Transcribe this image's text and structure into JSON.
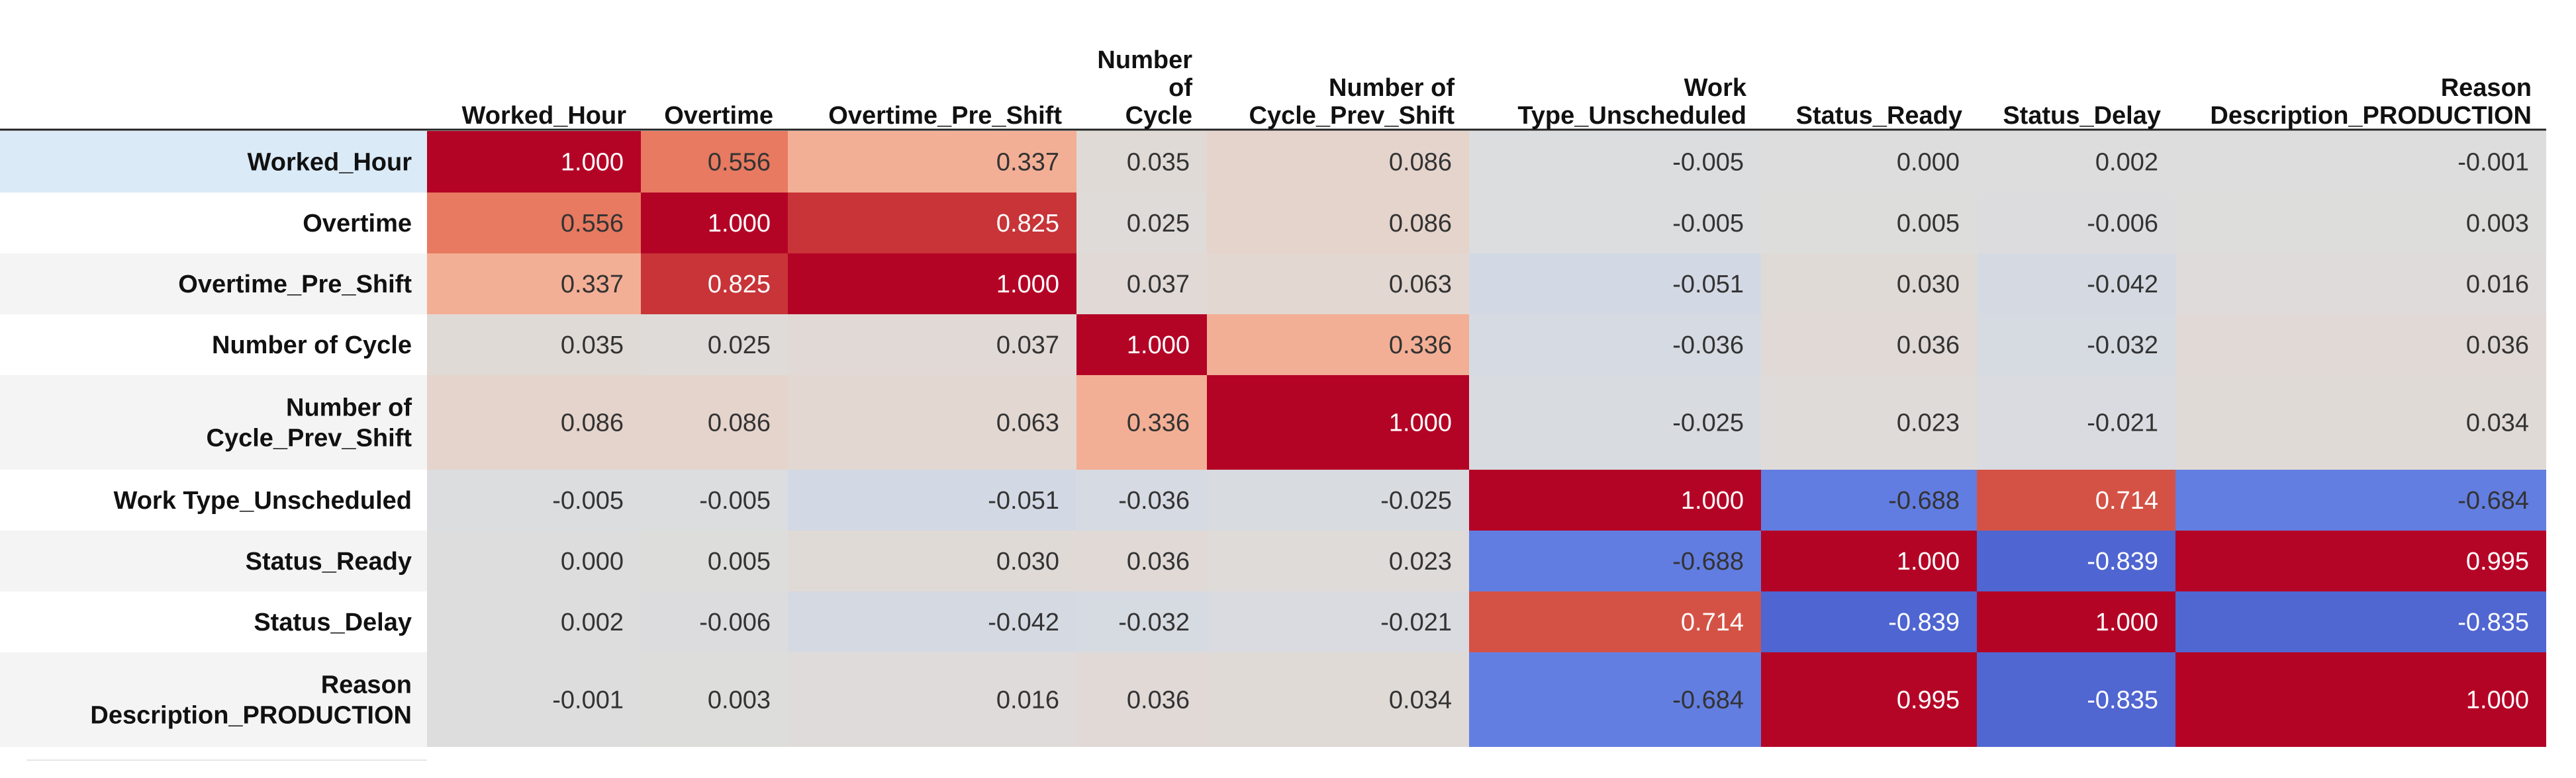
{
  "chart_data": {
    "type": "heatmap",
    "title": "",
    "colormap": "coolwarm",
    "vmin": -1.0,
    "vmax": 1.0,
    "columns": [
      [
        "Worked_Hour"
      ],
      [
        "Overtime"
      ],
      [
        "Overtime_Pre_Shift"
      ],
      [
        "Number",
        "of",
        "Cycle"
      ],
      [
        "Number of",
        "Cycle_Prev_Shift"
      ],
      [
        "Work",
        "Type_Unscheduled"
      ],
      [
        "Status_Ready"
      ],
      [
        "Status_Delay"
      ],
      [
        "Reason",
        "Description_PRODUCTION"
      ]
    ],
    "rows": [
      [
        "Worked_Hour"
      ],
      [
        "Overtime"
      ],
      [
        "Overtime_Pre_Shift"
      ],
      [
        "Number of Cycle"
      ],
      [
        "Number of",
        "Cycle_Prev_Shift"
      ],
      [
        "Work Type_Unscheduled"
      ],
      [
        "Status_Ready"
      ],
      [
        "Status_Delay"
      ],
      [
        "Reason",
        "Description_PRODUCTION"
      ]
    ],
    "values": [
      [
        "1.000",
        "0.556",
        "0.337",
        "0.035",
        "0.086",
        "-0.005",
        "0.000",
        "0.002",
        "-0.001"
      ],
      [
        "0.556",
        "1.000",
        "0.825",
        "0.025",
        "0.086",
        "-0.005",
        "0.005",
        "-0.006",
        "0.003"
      ],
      [
        "0.337",
        "0.825",
        "1.000",
        "0.037",
        "0.063",
        "-0.051",
        "0.030",
        "-0.042",
        "0.016"
      ],
      [
        "0.035",
        "0.025",
        "0.037",
        "1.000",
        "0.336",
        "-0.036",
        "0.036",
        "-0.032",
        "0.036"
      ],
      [
        "0.086",
        "0.086",
        "0.063",
        "0.336",
        "1.000",
        "-0.025",
        "0.023",
        "-0.021",
        "0.034"
      ],
      [
        "-0.005",
        "-0.005",
        "-0.051",
        "-0.036",
        "-0.025",
        "1.000",
        "-0.688",
        "0.714",
        "-0.684"
      ],
      [
        "0.000",
        "0.005",
        "0.030",
        "0.036",
        "0.023",
        "-0.688",
        "1.000",
        "-0.839",
        "0.995"
      ],
      [
        "0.002",
        "-0.006",
        "-0.042",
        "-0.032",
        "-0.021",
        "0.714",
        "-0.839",
        "1.000",
        "-0.835"
      ],
      [
        "-0.001",
        "0.003",
        "0.016",
        "0.036",
        "0.034",
        "-0.684",
        "0.995",
        "-0.835",
        "1.000"
      ]
    ]
  }
}
